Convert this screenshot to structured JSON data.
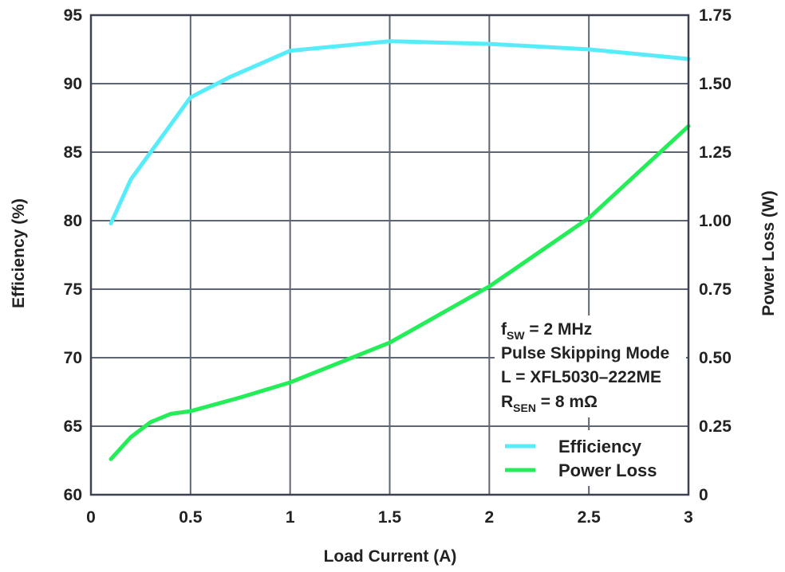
{
  "chart_data": {
    "type": "line",
    "xlabel": "Load Current (A)",
    "ylabel_left": "Efficiency (%)",
    "ylabel_right": "Power Loss (W)",
    "xlim": [
      0,
      3
    ],
    "ylim_left": [
      60,
      95
    ],
    "ylim_right": [
      0,
      1.75
    ],
    "x_ticks": [
      "0",
      "0.5",
      "1",
      "1.5",
      "2",
      "2.5",
      "3"
    ],
    "y_ticks_left": [
      "60",
      "65",
      "70",
      "75",
      "80",
      "85",
      "90",
      "95"
    ],
    "y_ticks_right": [
      "0",
      "0.25",
      "0.50",
      "0.75",
      "1.00",
      "1.25",
      "1.50",
      "1.75"
    ],
    "grid": true,
    "legend_position": "bottom-right",
    "annotation": {
      "line1_main": "f",
      "line1_sub": "SW",
      "line1_rest": " = 2 MHz",
      "line2": "Pulse Skipping Mode",
      "line3": "L = XFL5030–222ME",
      "line4_main": "R",
      "line4_sub": "SEN",
      "line4_rest": " = 8 mΩ"
    },
    "series": [
      {
        "name": "Efficiency",
        "axis": "left",
        "color": "#57ecfa",
        "x": [
          0.1,
          0.2,
          0.3,
          0.5,
          0.7,
          1.0,
          1.5,
          2.0,
          2.5,
          3.0
        ],
        "y": [
          79.8,
          83.0,
          85.0,
          89.0,
          90.5,
          92.4,
          93.1,
          92.9,
          92.5,
          91.8
        ]
      },
      {
        "name": "Power Loss",
        "axis": "right",
        "color": "#23ee58",
        "x": [
          0.1,
          0.2,
          0.3,
          0.4,
          0.5,
          0.75,
          1.0,
          1.5,
          2.0,
          2.5,
          3.0
        ],
        "y": [
          0.13,
          0.21,
          0.265,
          0.295,
          0.305,
          0.355,
          0.41,
          0.555,
          0.76,
          1.01,
          1.345
        ]
      }
    ]
  }
}
